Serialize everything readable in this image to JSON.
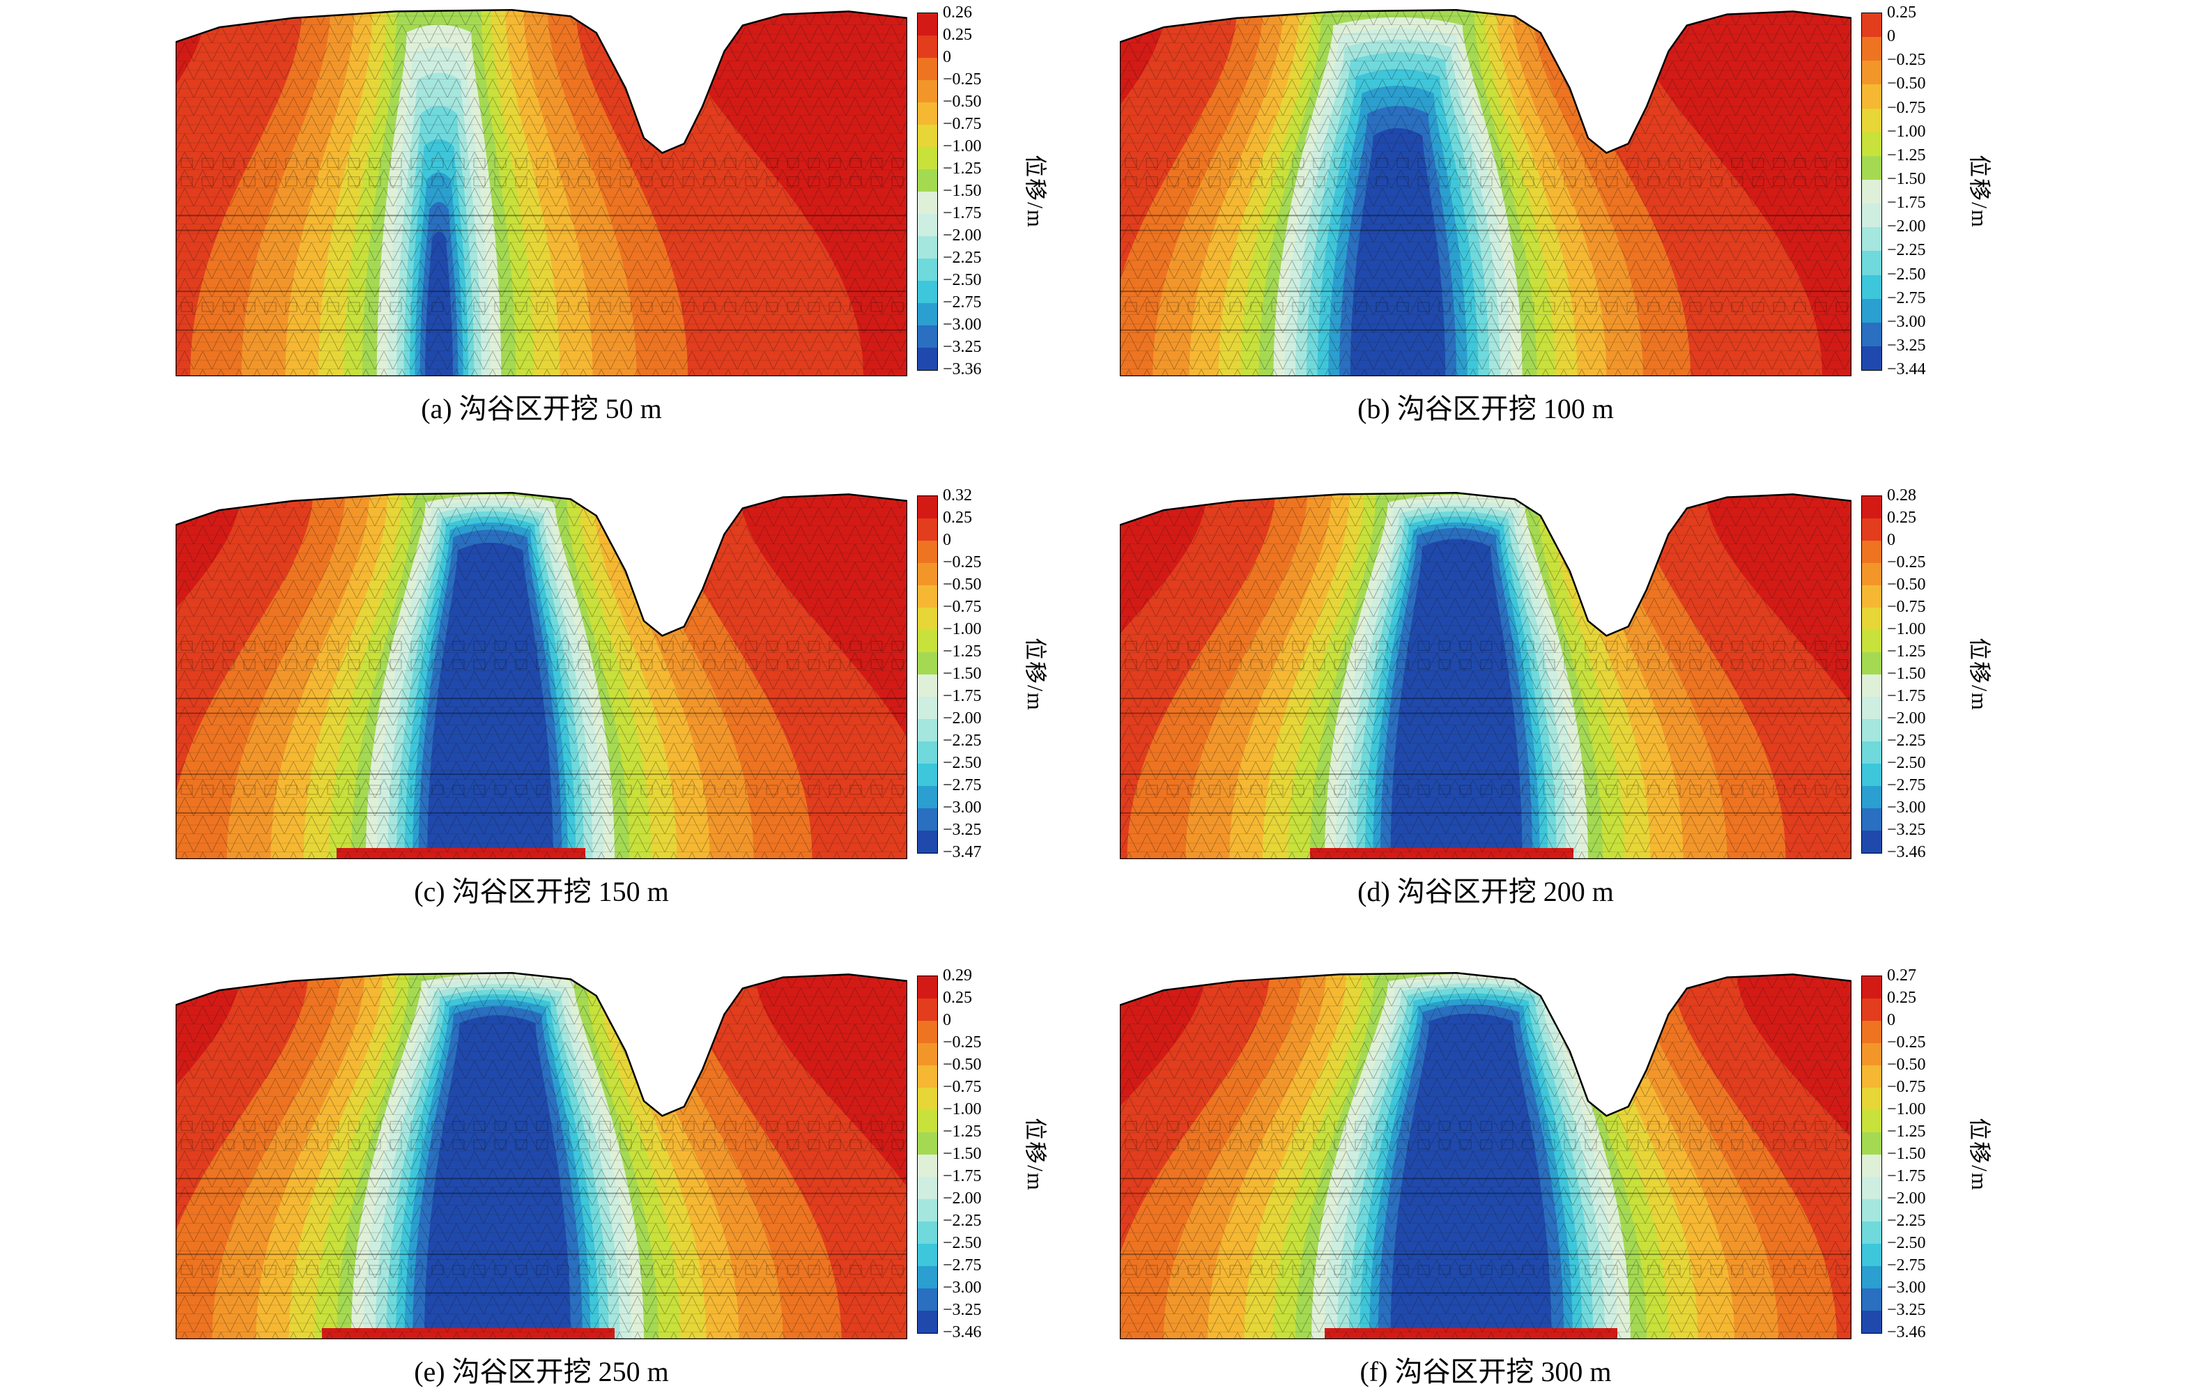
{
  "colorbar_label": "位移/m",
  "palette": [
    "#d41a15",
    "#e23d1d",
    "#ee7421",
    "#f3962a",
    "#f6b832",
    "#e7d637",
    "#c8e13b",
    "#a4da52",
    "#dff0d8",
    "#cdeee0",
    "#a5e6de",
    "#6fd9dc",
    "#3ec6da",
    "#2b9fd0",
    "#2a6fc0",
    "#1f49ac"
  ],
  "terrain": [
    [
      0,
      0.095
    ],
    [
      0.06,
      0.055
    ],
    [
      0.16,
      0.03
    ],
    [
      0.3,
      0.012
    ],
    [
      0.46,
      0.008
    ],
    [
      0.54,
      0.025
    ],
    [
      0.575,
      0.07
    ],
    [
      0.615,
      0.22
    ],
    [
      0.64,
      0.355
    ],
    [
      0.665,
      0.395
    ],
    [
      0.695,
      0.37
    ],
    [
      0.72,
      0.27
    ],
    [
      0.75,
      0.12
    ],
    [
      0.775,
      0.05
    ],
    [
      0.83,
      0.02
    ],
    [
      0.92,
      0.012
    ],
    [
      1,
      0.03
    ]
  ],
  "chart_data": [
    {
      "type": "heatmap",
      "id": "a",
      "caption": "(a) 沟谷区开挖 50 m",
      "excavation_depth_m": 50,
      "vmax": 0.26,
      "vmin": -3.36,
      "tick_labels": [
        "0.26",
        "0.25",
        "0",
        "−0.25",
        "−0.50",
        "−0.75",
        "−1.00",
        "−1.25",
        "−1.50",
        "−1.75",
        "−2.00",
        "−2.25",
        "−2.50",
        "−2.75",
        "−3.00",
        "−3.25",
        "−3.36"
      ],
      "cx": 0.36,
      "bands": [
        [
          1,
          0.58,
          0
        ],
        [
          2,
          0.34,
          0
        ],
        [
          3,
          0.27,
          0
        ],
        [
          4,
          0.21,
          0
        ],
        [
          5,
          0.165,
          0
        ],
        [
          6,
          0.13,
          0
        ],
        [
          7,
          0.105,
          0
        ],
        [
          8,
          0.085,
          0.05
        ],
        [
          9,
          0.07,
          0.11
        ],
        [
          10,
          0.058,
          0.18
        ],
        [
          11,
          0.048,
          0.27
        ],
        [
          12,
          0.04,
          0.36
        ],
        [
          13,
          0.033,
          0.45
        ],
        [
          14,
          0.026,
          0.53
        ],
        [
          15,
          0.019,
          0.61
        ]
      ],
      "strip": null
    },
    {
      "type": "heatmap",
      "id": "b",
      "caption": "(b) 沟谷区开挖 100 m",
      "excavation_depth_m": 100,
      "vmax": 0.25,
      "vmin": -3.44,
      "tick_labels": [
        "0.25",
        "0",
        "−0.25",
        "−0.50",
        "−0.75",
        "−1.00",
        "−1.25",
        "−1.50",
        "−1.75",
        "−2.00",
        "−2.25",
        "−2.50",
        "−2.75",
        "−3.00",
        "−3.25",
        "−3.44"
      ],
      "cx": 0.38,
      "bands": [
        [
          1,
          0.58,
          0
        ],
        [
          2,
          0.4,
          0
        ],
        [
          3,
          0.335,
          0
        ],
        [
          4,
          0.285,
          0
        ],
        [
          5,
          0.245,
          0
        ],
        [
          6,
          0.215,
          0
        ],
        [
          7,
          0.19,
          0
        ],
        [
          8,
          0.17,
          0.03
        ],
        [
          9,
          0.155,
          0.06
        ],
        [
          10,
          0.14,
          0.09
        ],
        [
          11,
          0.125,
          0.125
        ],
        [
          12,
          0.11,
          0.17
        ],
        [
          13,
          0.095,
          0.215
        ],
        [
          14,
          0.08,
          0.27
        ],
        [
          15,
          0.065,
          0.33
        ]
      ],
      "strip": null
    },
    {
      "type": "heatmap",
      "id": "c",
      "caption": "(c) 沟谷区开挖 150 m",
      "excavation_depth_m": 150,
      "vmax": 0.32,
      "vmin": -3.47,
      "tick_labels": [
        "0.32",
        "0.25",
        "0",
        "−0.25",
        "−0.50",
        "−0.75",
        "−1.00",
        "−1.25",
        "−1.50",
        "−1.75",
        "−2.00",
        "−2.25",
        "−2.50",
        "−2.75",
        "−3.00",
        "−3.25",
        "−3.47"
      ],
      "cx": 0.43,
      "bands": [
        [
          1,
          0.62,
          0
        ],
        [
          2,
          0.44,
          0
        ],
        [
          3,
          0.36,
          0
        ],
        [
          4,
          0.3,
          0
        ],
        [
          5,
          0.255,
          0
        ],
        [
          6,
          0.22,
          0
        ],
        [
          7,
          0.19,
          0
        ],
        [
          8,
          0.17,
          0.015
        ],
        [
          9,
          0.155,
          0.03
        ],
        [
          10,
          0.14,
          0.045
        ],
        [
          11,
          0.128,
          0.06
        ],
        [
          12,
          0.117,
          0.075
        ],
        [
          13,
          0.106,
          0.09
        ],
        [
          14,
          0.098,
          0.11
        ],
        [
          15,
          0.086,
          0.145
        ]
      ],
      "strip": [
        0.22,
        0.56
      ]
    },
    {
      "type": "heatmap",
      "id": "d",
      "caption": "(d) 沟谷区开挖 200 m",
      "excavation_depth_m": 200,
      "vmax": 0.28,
      "vmin": -3.46,
      "tick_labels": [
        "0.28",
        "0.25",
        "0",
        "−0.25",
        "−0.50",
        "−0.75",
        "−1.00",
        "−1.25",
        "−1.50",
        "−1.75",
        "−2.00",
        "−2.25",
        "−2.50",
        "−2.75",
        "−3.00",
        "−3.25",
        "−3.46"
      ],
      "cx": 0.46,
      "bands": [
        [
          1,
          0.62,
          0
        ],
        [
          2,
          0.45,
          0
        ],
        [
          3,
          0.37,
          0
        ],
        [
          4,
          0.31,
          0
        ],
        [
          5,
          0.265,
          0
        ],
        [
          6,
          0.23,
          0
        ],
        [
          7,
          0.2,
          0
        ],
        [
          8,
          0.18,
          0.015
        ],
        [
          9,
          0.165,
          0.03
        ],
        [
          10,
          0.15,
          0.045
        ],
        [
          11,
          0.137,
          0.06
        ],
        [
          12,
          0.125,
          0.075
        ],
        [
          13,
          0.114,
          0.09
        ],
        [
          14,
          0.104,
          0.105
        ],
        [
          15,
          0.09,
          0.135
        ]
      ],
      "strip": [
        0.26,
        0.62
      ]
    },
    {
      "type": "heatmap",
      "id": "e",
      "caption": "(e) 沟谷区开挖 250 m",
      "excavation_depth_m": 250,
      "vmax": 0.29,
      "vmin": -3.46,
      "tick_labels": [
        "0.29",
        "0.25",
        "0",
        "−0.25",
        "−0.50",
        "−0.75",
        "−1.00",
        "−1.25",
        "−1.50",
        "−1.75",
        "−2.00",
        "−2.25",
        "−2.50",
        "−2.75",
        "−3.00",
        "−3.25",
        "−3.46"
      ],
      "cx": 0.44,
      "bands": [
        [
          1,
          0.64,
          0
        ],
        [
          2,
          0.47,
          0
        ],
        [
          3,
          0.39,
          0
        ],
        [
          4,
          0.33,
          0
        ],
        [
          5,
          0.285,
          0
        ],
        [
          6,
          0.25,
          0
        ],
        [
          7,
          0.22,
          0
        ],
        [
          8,
          0.2,
          0.012
        ],
        [
          9,
          0.183,
          0.025
        ],
        [
          10,
          0.167,
          0.04
        ],
        [
          11,
          0.152,
          0.055
        ],
        [
          12,
          0.139,
          0.068
        ],
        [
          13,
          0.127,
          0.082
        ],
        [
          14,
          0.116,
          0.1
        ],
        [
          15,
          0.1,
          0.125
        ]
      ],
      "strip": [
        0.2,
        0.6
      ]
    },
    {
      "type": "heatmap",
      "id": "f",
      "caption": "(f) 沟谷区开挖 300 m",
      "excavation_depth_m": 300,
      "vmax": 0.27,
      "vmin": -3.46,
      "tick_labels": [
        "0.27",
        "0.25",
        "0",
        "−0.25",
        "−0.50",
        "−0.75",
        "−1.00",
        "−1.25",
        "−1.50",
        "−1.75",
        "−2.00",
        "−2.25",
        "−2.50",
        "−2.75",
        "−3.00",
        "−3.25",
        "−3.46"
      ],
      "cx": 0.48,
      "bands": [
        [
          1,
          0.66,
          0
        ],
        [
          2,
          0.5,
          0
        ],
        [
          3,
          0.42,
          0
        ],
        [
          4,
          0.36,
          0
        ],
        [
          5,
          0.31,
          0
        ],
        [
          6,
          0.27,
          0
        ],
        [
          7,
          0.24,
          0
        ],
        [
          8,
          0.218,
          0.012
        ],
        [
          9,
          0.2,
          0.025
        ],
        [
          10,
          0.183,
          0.038
        ],
        [
          11,
          0.167,
          0.05
        ],
        [
          12,
          0.152,
          0.065
        ],
        [
          13,
          0.139,
          0.08
        ],
        [
          14,
          0.127,
          0.095
        ],
        [
          15,
          0.11,
          0.12
        ]
      ],
      "strip": [
        0.28,
        0.68
      ]
    }
  ]
}
